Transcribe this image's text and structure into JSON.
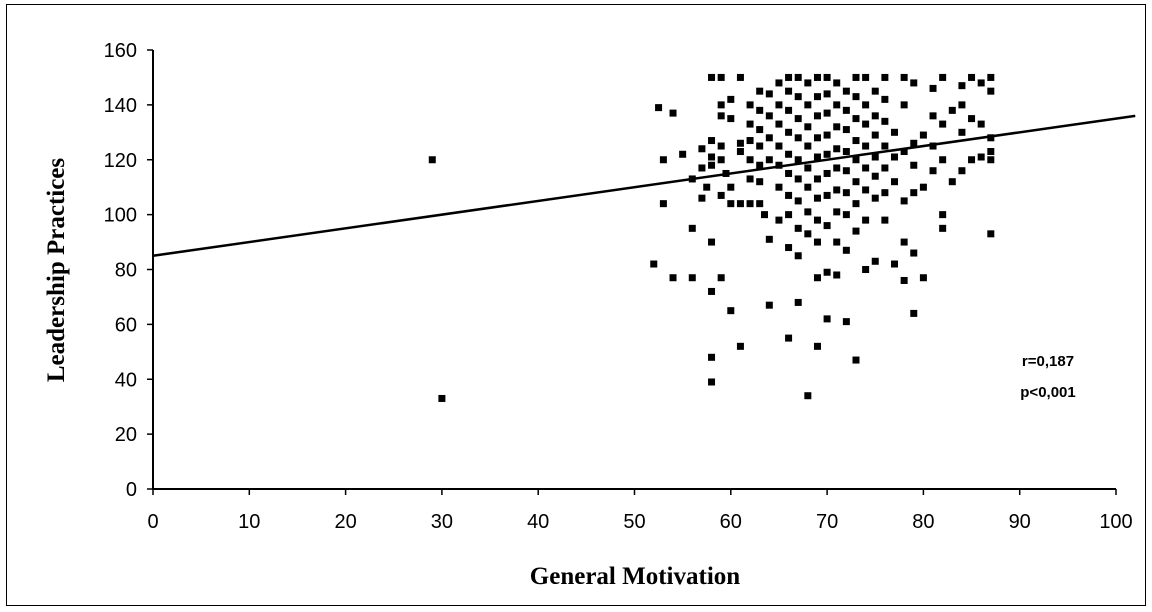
{
  "chart_data": {
    "type": "scatter",
    "title": "",
    "xlabel": "General Motivation",
    "ylabel": "Leadership Practices",
    "xlim": [
      0,
      100
    ],
    "ylim": [
      0,
      160
    ],
    "x_ticks": [
      "0",
      "10",
      "20",
      "30",
      "40",
      "50",
      "60",
      "70",
      "80",
      "90",
      "100"
    ],
    "y_ticks": [
      "0",
      "20",
      "40",
      "60",
      "80",
      "100",
      "120",
      "140",
      "160"
    ],
    "grid": false,
    "legend": "none",
    "marker_color": "#000000",
    "annotations": [
      "r=0,187",
      "p<0,001"
    ],
    "trendline": {
      "x": [
        0,
        102
      ],
      "y": [
        85,
        136
      ]
    },
    "series": [
      {
        "points": [
          [
            29,
            120
          ],
          [
            30,
            33
          ],
          [
            52,
            82
          ],
          [
            52.5,
            139
          ],
          [
            53,
            104
          ],
          [
            53,
            120
          ],
          [
            54,
            77
          ],
          [
            54,
            137
          ],
          [
            55,
            122
          ],
          [
            56,
            95
          ],
          [
            56,
            77
          ],
          [
            56,
            113
          ],
          [
            57,
            106
          ],
          [
            57,
            124
          ],
          [
            57,
            117
          ],
          [
            57.5,
            110
          ],
          [
            58,
            150
          ],
          [
            58,
            127
          ],
          [
            58,
            121
          ],
          [
            58,
            118
          ],
          [
            58,
            90
          ],
          [
            58,
            72
          ],
          [
            58,
            48
          ],
          [
            58,
            39
          ],
          [
            59,
            150
          ],
          [
            59,
            140
          ],
          [
            59,
            120
          ],
          [
            59,
            107
          ],
          [
            59,
            77
          ],
          [
            59,
            136
          ],
          [
            59,
            125
          ],
          [
            59.5,
            115
          ],
          [
            60,
            65
          ],
          [
            60,
            104
          ],
          [
            60,
            110
          ],
          [
            60,
            135
          ],
          [
            60,
            142
          ],
          [
            61,
            150
          ],
          [
            61,
            126
          ],
          [
            61,
            52
          ],
          [
            61,
            123
          ],
          [
            61,
            104
          ],
          [
            62,
            140
          ],
          [
            62,
            133
          ],
          [
            62,
            127
          ],
          [
            62,
            120
          ],
          [
            62,
            113
          ],
          [
            62,
            104
          ],
          [
            63,
            145
          ],
          [
            63,
            138
          ],
          [
            63,
            131
          ],
          [
            63,
            125
          ],
          [
            63,
            118
          ],
          [
            63,
            112
          ],
          [
            63,
            104
          ],
          [
            63.5,
            100
          ],
          [
            64,
            144
          ],
          [
            64,
            136
          ],
          [
            64,
            128
          ],
          [
            64,
            120
          ],
          [
            64,
            91
          ],
          [
            64,
            67
          ],
          [
            65,
            148
          ],
          [
            65,
            140
          ],
          [
            65,
            133
          ],
          [
            65,
            125
          ],
          [
            65,
            118
          ],
          [
            65,
            110
          ],
          [
            65,
            98
          ],
          [
            66,
            150
          ],
          [
            66,
            145
          ],
          [
            66,
            138
          ],
          [
            66,
            130
          ],
          [
            66,
            122
          ],
          [
            66,
            115
          ],
          [
            66,
            107
          ],
          [
            66,
            100
          ],
          [
            66,
            88
          ],
          [
            66,
            55
          ],
          [
            67,
            150
          ],
          [
            67,
            143
          ],
          [
            67,
            135
          ],
          [
            67,
            128
          ],
          [
            67,
            120
          ],
          [
            67,
            113
          ],
          [
            67,
            105
          ],
          [
            67,
            95
          ],
          [
            67,
            85
          ],
          [
            67,
            68
          ],
          [
            68,
            148
          ],
          [
            68,
            140
          ],
          [
            68,
            132
          ],
          [
            68,
            125
          ],
          [
            68,
            117
          ],
          [
            68,
            110
          ],
          [
            68,
            101
          ],
          [
            68,
            93
          ],
          [
            68,
            34
          ],
          [
            69,
            150
          ],
          [
            69,
            143
          ],
          [
            69,
            136
          ],
          [
            69,
            128
          ],
          [
            69,
            121
          ],
          [
            69,
            113
          ],
          [
            69,
            106
          ],
          [
            69,
            98
          ],
          [
            69,
            90
          ],
          [
            69,
            77
          ],
          [
            69,
            52
          ],
          [
            70,
            150
          ],
          [
            70,
            144
          ],
          [
            70,
            137
          ],
          [
            70,
            129
          ],
          [
            70,
            122
          ],
          [
            70,
            115
          ],
          [
            70,
            107
          ],
          [
            70,
            96
          ],
          [
            70,
            79
          ],
          [
            70,
            62
          ],
          [
            71,
            148
          ],
          [
            71,
            140
          ],
          [
            71,
            132
          ],
          [
            71,
            124
          ],
          [
            71,
            117
          ],
          [
            71,
            109
          ],
          [
            71,
            101
          ],
          [
            71,
            90
          ],
          [
            71,
            78
          ],
          [
            72,
            145
          ],
          [
            72,
            138
          ],
          [
            72,
            131
          ],
          [
            72,
            123
          ],
          [
            72,
            116
          ],
          [
            72,
            108
          ],
          [
            72,
            100
          ],
          [
            72,
            87
          ],
          [
            72,
            61
          ],
          [
            73,
            150
          ],
          [
            73,
            143
          ],
          [
            73,
            135
          ],
          [
            73,
            127
          ],
          [
            73,
            120
          ],
          [
            73,
            112
          ],
          [
            73,
            104
          ],
          [
            73,
            94
          ],
          [
            73,
            47
          ],
          [
            74,
            150
          ],
          [
            74,
            140
          ],
          [
            74,
            133
          ],
          [
            74,
            125
          ],
          [
            74,
            117
          ],
          [
            74,
            109
          ],
          [
            74,
            98
          ],
          [
            74,
            80
          ],
          [
            75,
            145
          ],
          [
            75,
            136
          ],
          [
            75,
            129
          ],
          [
            75,
            121
          ],
          [
            75,
            114
          ],
          [
            75,
            106
          ],
          [
            75,
            83
          ],
          [
            76,
            150
          ],
          [
            76,
            142
          ],
          [
            76,
            134
          ],
          [
            76,
            125
          ],
          [
            76,
            117
          ],
          [
            76,
            108
          ],
          [
            76,
            98
          ],
          [
            77,
            130
          ],
          [
            77,
            121
          ],
          [
            77,
            112
          ],
          [
            77,
            82
          ],
          [
            78,
            150
          ],
          [
            78,
            140
          ],
          [
            78,
            123
          ],
          [
            78,
            105
          ],
          [
            78,
            90
          ],
          [
            78,
            76
          ],
          [
            79,
            148
          ],
          [
            79,
            126
          ],
          [
            79,
            118
          ],
          [
            79,
            108
          ],
          [
            79,
            86
          ],
          [
            79,
            64
          ],
          [
            80,
            129
          ],
          [
            80,
            110
          ],
          [
            80,
            77
          ],
          [
            81,
            146
          ],
          [
            81,
            136
          ],
          [
            81,
            125
          ],
          [
            81,
            116
          ],
          [
            82,
            150
          ],
          [
            82,
            133
          ],
          [
            82,
            120
          ],
          [
            82,
            100
          ],
          [
            82,
            95
          ],
          [
            83,
            138
          ],
          [
            83,
            112
          ],
          [
            84,
            147
          ],
          [
            84,
            140
          ],
          [
            84,
            130
          ],
          [
            84,
            116
          ],
          [
            85,
            150
          ],
          [
            85,
            135
          ],
          [
            85,
            120
          ],
          [
            86,
            148
          ],
          [
            86,
            133
          ],
          [
            86,
            121
          ],
          [
            87,
            150
          ],
          [
            87,
            145
          ],
          [
            87,
            128
          ],
          [
            87,
            123
          ],
          [
            87,
            120
          ],
          [
            87,
            93
          ]
        ]
      }
    ]
  }
}
